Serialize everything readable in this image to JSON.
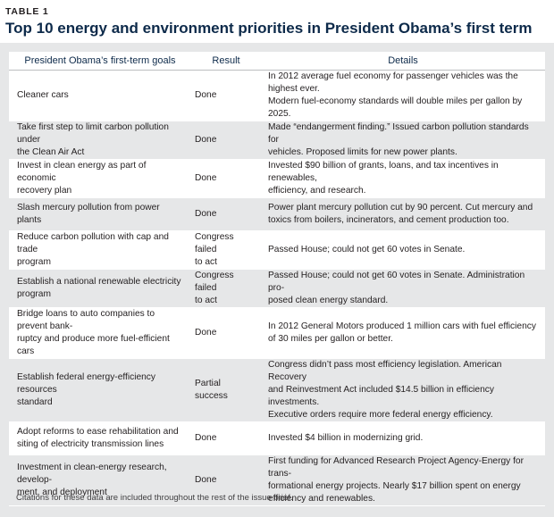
{
  "table_label": "TABLE 1",
  "title": "Top 10 energy and environment priorities in President Obama’s first term",
  "columns": {
    "goal": "President Obama’s first-term goals",
    "result": "Result",
    "details": "Details"
  },
  "rows": [
    {
      "goal": [
        "Cleaner cars"
      ],
      "result": [
        "Done"
      ],
      "details": [
        "In 2012 average fuel economy for passenger vehicles was the highest ever.",
        "Modern fuel-economy standards will double miles per gallon by 2025."
      ]
    },
    {
      "goal": [
        "Take first step to limit carbon pollution under",
        "the Clean Air Act"
      ],
      "result": [
        "Done"
      ],
      "details": [
        "Made “endangerment finding.” Issued carbon pollution standards for",
        "vehicles. Proposed limits for new power plants."
      ]
    },
    {
      "goal": [
        "Invest in clean energy as part of economic",
        "recovery plan"
      ],
      "result": [
        "Done"
      ],
      "details": [
        "Invested $90 billion of grants, loans, and tax incentives in renewables,",
        "efficiency, and research."
      ]
    },
    {
      "goal": [
        "Slash mercury pollution from power plants"
      ],
      "result": [
        "Done"
      ],
      "details": [
        "Power plant mercury pollution cut by 90 percent. Cut mercury and",
        "toxics from boilers, incinerators, and cement production too."
      ]
    },
    {
      "goal": [
        "Reduce carbon pollution with cap and trade",
        "program"
      ],
      "result": [
        "Congress failed",
        "to act"
      ],
      "details": [
        "Passed House; could not get 60 votes in Senate."
      ]
    },
    {
      "goal": [
        "Establish a national renewable electricity",
        "program"
      ],
      "result": [
        "Congress failed",
        "to act"
      ],
      "details": [
        "Passed House; could not get 60 votes in Senate. Administration pro-",
        "posed clean energy standard."
      ]
    },
    {
      "goal": [
        "Bridge loans to auto companies to prevent bank-",
        "ruptcy and produce more fuel-efficient cars"
      ],
      "result": [
        "Done"
      ],
      "details": [
        "In 2012 General Motors produced 1 million cars with fuel efficiency",
        "of 30  miles per gallon or better."
      ]
    },
    {
      "goal": [
        "Establish federal energy-efficiency resources",
        "standard"
      ],
      "result": [
        "Partial success"
      ],
      "details": [
        "Congress didn’t pass most efficiency legislation. American Recovery",
        "and Reinvestment Act included $14.5 billion in efficiency investments.",
        "Executive orders require more federal energy efficiency."
      ]
    },
    {
      "goal": [
        "Adopt reforms to ease rehabilitation and",
        "siting of electricity transmission lines"
      ],
      "result": [
        "Done"
      ],
      "details": [
        "Invested $4 billion in modernizing grid."
      ]
    },
    {
      "goal": [
        "Investment in clean-energy research, develop-",
        "ment, and deployment"
      ],
      "result": [
        "Done"
      ],
      "details": [
        "First funding for Advanced Research Project Agency-Energy for trans-",
        "formational energy projects. Nearly $17 billion spent on energy",
        "efficiency and renewables."
      ]
    }
  ],
  "footnote": "Citations for these data are included throughout the rest of the issue brief."
}
